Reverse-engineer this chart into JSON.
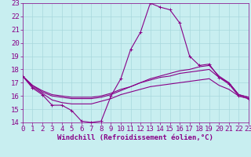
{
  "title": "Windchill (Refroidissement éolien,°C)",
  "bg_color": "#c8eef0",
  "grid_color": "#a8d8dc",
  "line_color": "#880088",
  "spine_color": "#880088",
  "xmin": 0,
  "xmax": 23,
  "ymin": 14,
  "ymax": 23,
  "line1_x": [
    0,
    1,
    2,
    3,
    4,
    5,
    6,
    7,
    8,
    9,
    10,
    11,
    12,
    13,
    14,
    15,
    16,
    17,
    18,
    19,
    20,
    21,
    22,
    23
  ],
  "line1_y": [
    17.5,
    16.6,
    16.1,
    15.3,
    15.3,
    14.9,
    14.1,
    14.0,
    14.1,
    16.0,
    17.3,
    19.5,
    20.8,
    23.0,
    22.7,
    22.5,
    21.5,
    19.0,
    18.3,
    18.4,
    17.4,
    16.9,
    16.0,
    15.8
  ],
  "line2_x": [
    0,
    1,
    2,
    3,
    4,
    5,
    6,
    7,
    8,
    9,
    10,
    11,
    12,
    13,
    14,
    15,
    16,
    17,
    18,
    19,
    20,
    21,
    22,
    23
  ],
  "line2_y": [
    17.5,
    16.8,
    16.3,
    16.0,
    15.9,
    15.8,
    15.8,
    15.8,
    15.9,
    16.1,
    16.4,
    16.7,
    17.0,
    17.3,
    17.5,
    17.7,
    17.9,
    18.0,
    18.2,
    18.3,
    17.5,
    17.0,
    16.1,
    15.9
  ],
  "line3_x": [
    0,
    1,
    2,
    3,
    4,
    5,
    6,
    7,
    8,
    9,
    10,
    11,
    12,
    13,
    14,
    15,
    16,
    17,
    18,
    19,
    20,
    21,
    22,
    23
  ],
  "line3_y": [
    17.5,
    16.8,
    16.4,
    16.1,
    16.0,
    15.9,
    15.9,
    15.9,
    16.0,
    16.2,
    16.5,
    16.7,
    17.0,
    17.2,
    17.4,
    17.5,
    17.7,
    17.8,
    17.9,
    18.0,
    17.4,
    17.0,
    16.1,
    15.9
  ],
  "line4_x": [
    0,
    1,
    2,
    3,
    4,
    5,
    6,
    7,
    8,
    9,
    10,
    11,
    12,
    13,
    14,
    15,
    16,
    17,
    18,
    19,
    20,
    21,
    22,
    23
  ],
  "line4_y": [
    17.5,
    16.7,
    16.2,
    15.7,
    15.5,
    15.4,
    15.4,
    15.4,
    15.6,
    15.8,
    16.1,
    16.3,
    16.5,
    16.7,
    16.8,
    16.9,
    17.0,
    17.1,
    17.2,
    17.3,
    16.8,
    16.5,
    16.0,
    15.8
  ],
  "tick_fontsize": 6.5,
  "xlabel_fontsize": 6.5
}
